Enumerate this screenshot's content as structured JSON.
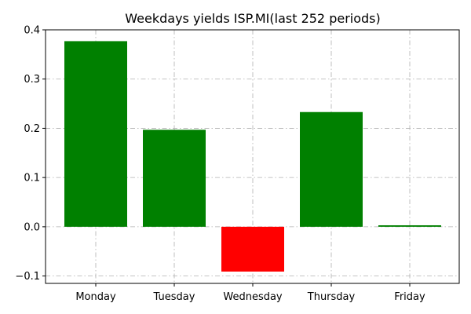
{
  "chart_data": {
    "type": "bar",
    "title": "Weekdays yields ISP.MI(last 252 periods)",
    "xlabel": "",
    "ylabel": "",
    "categories": [
      "Monday",
      "Tuesday",
      "Wednesday",
      "Thursday",
      "Friday"
    ],
    "values": [
      0.377,
      0.197,
      -0.091,
      0.233,
      0.003
    ],
    "ylim": [
      -0.115,
      0.4
    ],
    "yticks": [
      -0.1,
      0.0,
      0.1,
      0.2,
      0.3,
      0.4
    ],
    "ytick_labels": [
      "−0.1",
      "0.0",
      "0.1",
      "0.2",
      "0.3",
      "0.4"
    ],
    "grid": true,
    "legend": "none",
    "colors": {
      "positive": "#008000",
      "negative": "#ff0000",
      "grid": "#b0b0b0"
    }
  }
}
